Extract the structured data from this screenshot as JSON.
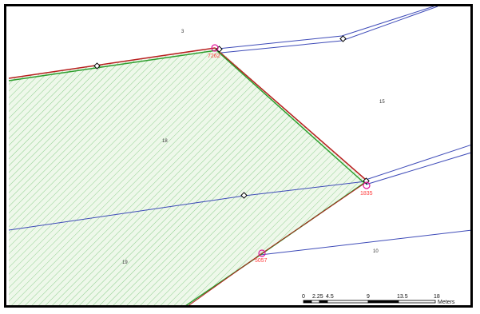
{
  "map": {
    "colors": {
      "frame": "#000000",
      "parcel_line": "#3e4bb8",
      "selection_red": "#b81f1f",
      "selection_green": "#2e9e2e",
      "hatch": "#8fcf8f",
      "hatch_bg": "#eef8ea",
      "vertex_marker": "#e0149a",
      "vertex_label": "#ff3b3b"
    },
    "parcel_labels": [
      "3",
      "15",
      "18",
      "19",
      "10"
    ],
    "vertex_labels": [
      "7262",
      "1835",
      "5057"
    ]
  },
  "scale_bar": {
    "ticks": [
      "0",
      "2.25",
      "4.5",
      "9",
      "13.5",
      "18"
    ],
    "unit": "Meters"
  }
}
